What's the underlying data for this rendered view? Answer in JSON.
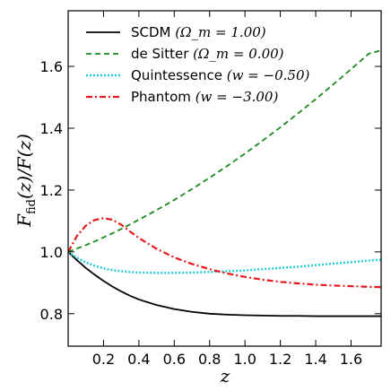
{
  "chart_data": {
    "type": "line",
    "xlabel": "z",
    "ylabel": "F_fid(z)/F(z)",
    "xlim": [
      0.0,
      1.77
    ],
    "ylim": [
      0.695,
      1.78
    ],
    "xticks": [
      0.2,
      0.4,
      0.6,
      0.8,
      1.0,
      1.2,
      1.4,
      1.6
    ],
    "xtick_labels": [
      "0.2",
      "0.4",
      "0.6",
      "0.8",
      "1.0",
      "1.2",
      "1.4",
      "1.6"
    ],
    "yticks": [
      0.8,
      1.0,
      1.2,
      1.4,
      1.6
    ],
    "ytick_labels": [
      "0.8",
      "1.0",
      "1.2",
      "1.4",
      "1.6"
    ],
    "grid": false,
    "legend_position": "top-left",
    "x": [
      0.0,
      0.05,
      0.1,
      0.15,
      0.2,
      0.25,
      0.3,
      0.35,
      0.4,
      0.5,
      0.6,
      0.7,
      0.8,
      0.9,
      1.0,
      1.1,
      1.2,
      1.3,
      1.4,
      1.5,
      1.6,
      1.7,
      1.77
    ],
    "series": [
      {
        "name_text": "SCDM",
        "name_math": "(Ω_m = 1.00)",
        "color": "#000000",
        "dash": "",
        "width": 1.8,
        "values": [
          1.0,
          0.973,
          0.948,
          0.926,
          0.906,
          0.888,
          0.872,
          0.858,
          0.846,
          0.828,
          0.815,
          0.806,
          0.8,
          0.797,
          0.795,
          0.794,
          0.793,
          0.793,
          0.792,
          0.792,
          0.792,
          0.792,
          0.792
        ]
      },
      {
        "name_text": "de Sitter",
        "name_math": "(Ω_m = 0.00)",
        "color": "#1a8a1a",
        "dash": "6 4",
        "width": 1.8,
        "values": [
          1.0,
          1.011,
          1.022,
          1.034,
          1.047,
          1.06,
          1.074,
          1.089,
          1.104,
          1.135,
          1.168,
          1.203,
          1.24,
          1.278,
          1.318,
          1.36,
          1.403,
          1.448,
          1.494,
          1.542,
          1.591,
          1.641,
          1.652
        ]
      },
      {
        "name_text": "Quintessence",
        "name_math": "(w = −0.50)",
        "color": "#22c8d8",
        "dash": "2 2",
        "width": 2.4,
        "values": [
          1.0,
          0.981,
          0.966,
          0.955,
          0.947,
          0.941,
          0.937,
          0.935,
          0.933,
          0.932,
          0.932,
          0.933,
          0.935,
          0.937,
          0.94,
          0.944,
          0.948,
          0.952,
          0.957,
          0.962,
          0.967,
          0.972,
          0.975
        ]
      },
      {
        "name_text": "Phantom",
        "name_math": "(w = −3.00)",
        "color": "#e8191d",
        "dash": "7 3 2 3",
        "width": 2.2,
        "values": [
          1.0,
          1.052,
          1.085,
          1.103,
          1.109,
          1.104,
          1.088,
          1.066,
          1.045,
          1.01,
          0.982,
          0.961,
          0.944,
          0.93,
          0.919,
          0.91,
          0.903,
          0.898,
          0.894,
          0.891,
          0.889,
          0.887,
          0.886
        ]
      }
    ]
  }
}
